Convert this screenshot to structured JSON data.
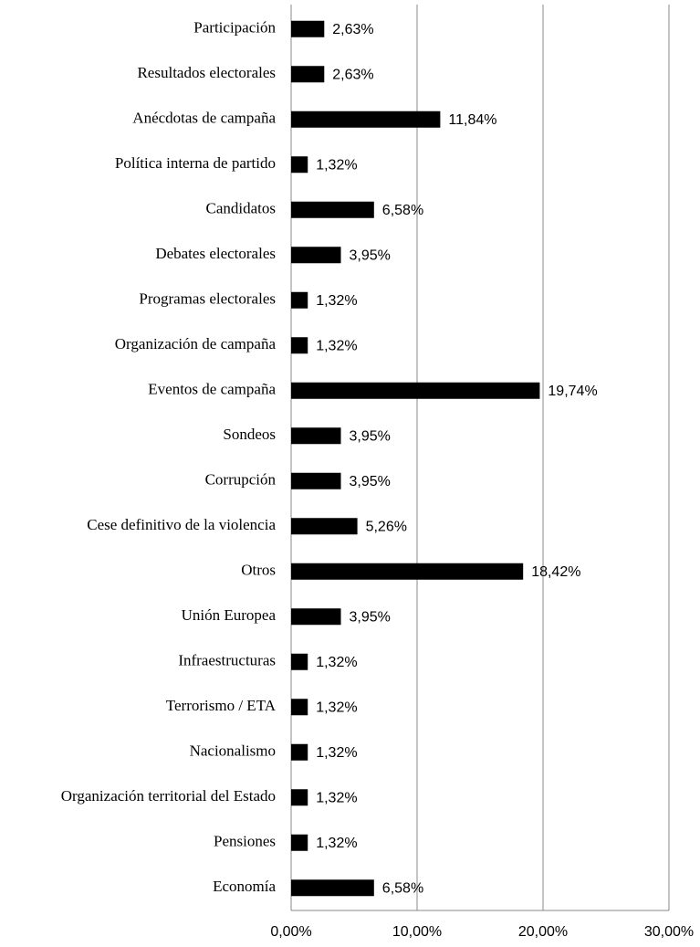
{
  "chart_data": {
    "type": "bar",
    "orientation": "horizontal",
    "color": "#000000",
    "grid": true,
    "categories": [
      "Participación",
      "Resultados electorales",
      "Anécdotas de campaña",
      "Política interna de partido",
      "Candidatos",
      "Debates electorales",
      "Programas electorales",
      "Organización de campaña",
      "Eventos de campaña",
      "Sondeos",
      "Corrupción",
      "Cese definitivo de la violencia",
      "Otros",
      "Unión Europea",
      "Infraestructuras",
      "Terrorismo / ETA",
      "Nacionalismo",
      "Organización territorial del Estado",
      "Pensiones",
      "Economía"
    ],
    "values": [
      2.63,
      2.63,
      11.84,
      1.32,
      6.58,
      3.95,
      1.32,
      1.32,
      19.74,
      3.95,
      3.95,
      5.26,
      18.42,
      3.95,
      1.32,
      1.32,
      1.32,
      1.32,
      1.32,
      6.58
    ],
    "value_labels": [
      "2,63%",
      "2,63%",
      "11,84%",
      "1,32%",
      "6,58%",
      "3,95%",
      "1,32%",
      "1,32%",
      "19,74%",
      "3,95%",
      "3,95%",
      "5,26%",
      "18,42%",
      "3,95%",
      "1,32%",
      "1,32%",
      "1,32%",
      "1,32%",
      "1,32%",
      "6,58%"
    ],
    "xlim": [
      0,
      30
    ],
    "xticks": [
      {
        "value": 0,
        "label": "0,00%"
      },
      {
        "value": 10,
        "label": "10,00%"
      },
      {
        "value": 20,
        "label": "20,00%"
      },
      {
        "value": 30,
        "label": "30,00%"
      }
    ]
  }
}
